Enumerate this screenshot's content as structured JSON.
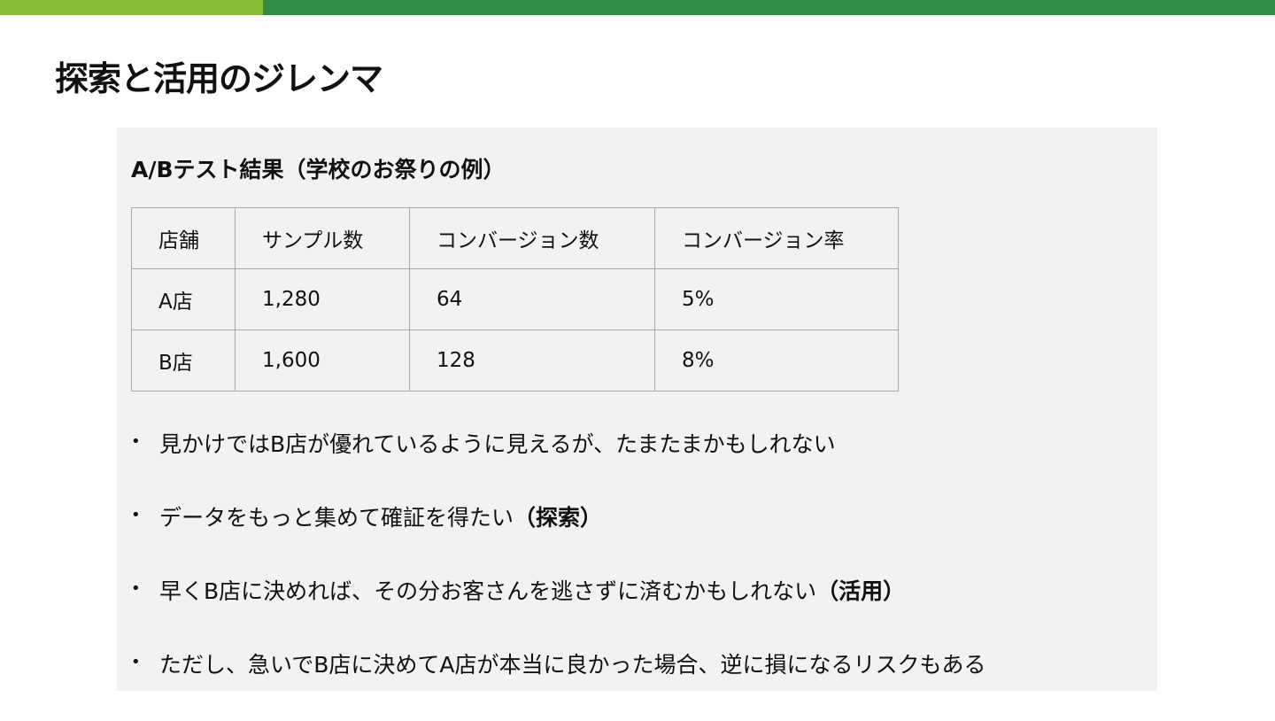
{
  "colors": {
    "bar_light": "#86bc36",
    "bar_dark": "#2f8c42",
    "panel_bg": "#f2f2f1"
  },
  "title": "探索と活用のジレンマ",
  "panel": {
    "subtitle": "A/Bテスト結果（学校のお祭りの例）",
    "table": {
      "headers": [
        "店舗",
        "サンプル数",
        "コンバージョン数",
        "コンバージョン率"
      ],
      "rows": [
        [
          "A店",
          "1,280",
          "64",
          "5%"
        ],
        [
          "B店",
          "1,600",
          "128",
          "8%"
        ]
      ]
    },
    "bullets": [
      {
        "text": "見かけではB店が優れているように見えるが、たまたまかもしれない",
        "bold": ""
      },
      {
        "text": "データをもっと集めて確証を得たい",
        "bold": "（探索）"
      },
      {
        "text": "早くB店に決めれば、その分お客さんを逃さずに済むかもしれない",
        "bold": "（活用）"
      },
      {
        "text": "ただし、急いでB店に決めてA店が本当に良かった場合、逆に損になるリスクもある",
        "bold": ""
      }
    ]
  }
}
